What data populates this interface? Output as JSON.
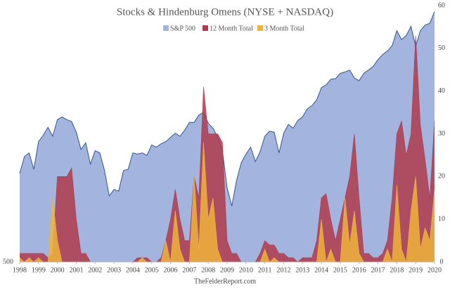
{
  "chart_data": {
    "type": "area",
    "title": "Stocks & Hindenburg Omens (NYSE + NASDAQ)",
    "source": "TheFelderReport.com",
    "yscale": "log",
    "ylim": [
      500,
      3400
    ],
    "yticks": [
      500
    ],
    "y2lim": [
      0,
      60
    ],
    "y2ticks": [
      0,
      10,
      20,
      30,
      40,
      50,
      60
    ],
    "xlim": [
      1998,
      2020
    ],
    "xticks": [
      1998,
      1999,
      2000,
      2001,
      2002,
      2003,
      2004,
      2005,
      2006,
      2007,
      2008,
      2009,
      2010,
      2011,
      2012,
      2013,
      2014,
      2015,
      2016,
      2017,
      2018,
      2019,
      2020
    ],
    "x": [
      1998,
      1998.25,
      1998.5,
      1998.75,
      1999,
      1999.25,
      1999.5,
      1999.75,
      2000,
      2000.25,
      2000.5,
      2000.75,
      2001,
      2001.25,
      2001.5,
      2001.75,
      2002,
      2002.25,
      2002.5,
      2002.75,
      2003,
      2003.25,
      2003.5,
      2003.75,
      2004,
      2004.25,
      2004.5,
      2004.75,
      2005,
      2005.25,
      2005.5,
      2005.75,
      2006,
      2006.25,
      2006.5,
      2006.75,
      2007,
      2007.25,
      2007.5,
      2007.75,
      2008,
      2008.25,
      2008.5,
      2008.75,
      2009,
      2009.25,
      2009.5,
      2009.75,
      2010,
      2010.25,
      2010.5,
      2010.75,
      2011,
      2011.25,
      2011.5,
      2011.75,
      2012,
      2012.25,
      2012.5,
      2012.75,
      2013,
      2013.25,
      2013.5,
      2013.75,
      2014,
      2014.25,
      2014.5,
      2014.75,
      2015,
      2015.25,
      2015.5,
      2015.75,
      2016,
      2016.25,
      2016.5,
      2016.75,
      2017,
      2017.25,
      2017.5,
      2017.75,
      2018,
      2018.25,
      2018.5,
      2018.75,
      2019,
      2019.25,
      2019.5,
      2019.75,
      2020
    ],
    "series": [
      {
        "name": "S&P 500",
        "color": "#a3b5de",
        "line_color": "#34558f",
        "axis": "y",
        "values": [
          970,
          1100,
          1130,
          1000,
          1230,
          1290,
          1370,
          1280,
          1450,
          1480,
          1450,
          1430,
          1320,
          1160,
          1220,
          1040,
          1150,
          1130,
          990,
          820,
          860,
          850,
          990,
          1000,
          1130,
          1120,
          1130,
          1110,
          1200,
          1180,
          1210,
          1230,
          1270,
          1310,
          1280,
          1340,
          1420,
          1420,
          1500,
          1530,
          1410,
          1360,
          1270,
          1150,
          870,
          760,
          920,
          1050,
          1120,
          1180,
          1060,
          1140,
          1280,
          1330,
          1320,
          1130,
          1310,
          1400,
          1360,
          1440,
          1480,
          1570,
          1610,
          1680,
          1840,
          1880,
          1960,
          1970,
          2050,
          2070,
          2100,
          1980,
          1940,
          2050,
          2100,
          2160,
          2270,
          2360,
          2420,
          2520,
          2820,
          2640,
          2720,
          2910,
          2510,
          2820,
          2940,
          2980,
          3250
        ]
      },
      {
        "name": "12 Month Total",
        "color": "#b03a4c",
        "axis": "y2",
        "values": [
          2,
          2,
          2,
          2,
          2,
          2,
          1,
          2,
          20,
          20,
          20,
          22,
          10,
          2,
          2,
          0,
          0,
          0,
          0,
          0,
          0,
          0,
          0,
          0,
          0,
          1,
          1,
          1,
          0,
          0,
          1,
          5,
          10,
          17,
          10,
          5,
          5,
          20,
          15,
          41,
          30,
          30,
          30,
          28,
          5,
          2,
          2,
          0,
          0,
          0,
          0,
          2,
          5,
          4,
          4,
          2,
          2,
          1,
          1,
          0,
          1,
          1,
          1,
          5,
          15,
          16,
          10,
          5,
          10,
          15,
          20,
          30,
          15,
          2,
          2,
          1,
          1,
          2,
          5,
          15,
          30,
          33,
          25,
          30,
          53,
          32,
          24,
          15,
          33
        ]
      },
      {
        "name": "3 Month Total",
        "color": "#f0b43c",
        "axis": "y2",
        "values": [
          1,
          0,
          1,
          0,
          1,
          0,
          0,
          15,
          5,
          0,
          0,
          0,
          0,
          0,
          0,
          0,
          0,
          0,
          0,
          0,
          0,
          0,
          0,
          0,
          0,
          0,
          1,
          0,
          0,
          0,
          0,
          5,
          0,
          12,
          3,
          0,
          0,
          20,
          3,
          28,
          10,
          15,
          3,
          0,
          0,
          0,
          0,
          0,
          0,
          0,
          0,
          0,
          3,
          0,
          1,
          0,
          0,
          0,
          0,
          0,
          0,
          0,
          0,
          0,
          10,
          0,
          3,
          0,
          0,
          15,
          4,
          12,
          2,
          0,
          0,
          0,
          0,
          0,
          3,
          0,
          18,
          3,
          0,
          12,
          20,
          3,
          8,
          5,
          17
        ]
      }
    ]
  }
}
